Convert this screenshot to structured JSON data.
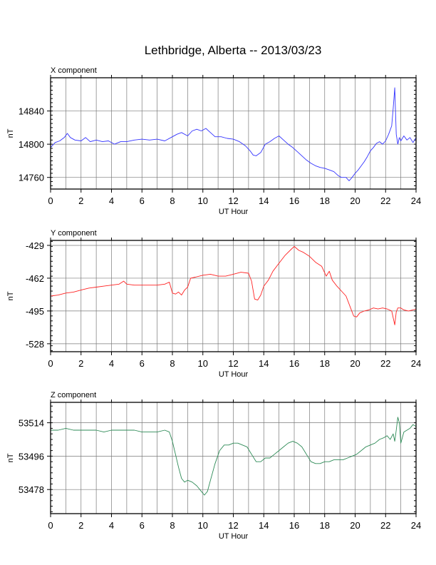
{
  "chart_data": [
    {
      "type": "line",
      "title": "Lethbridge, Alberta -- 2013/03/23",
      "panel_label": "X component",
      "xlabel": "UT Hour",
      "ylabel": "nT",
      "xlim": [
        0,
        24
      ],
      "ylim": [
        14746,
        14880
      ],
      "x_ticks": [
        "0",
        "2",
        "4",
        "6",
        "8",
        "10",
        "12",
        "14",
        "16",
        "18",
        "20",
        "22",
        "24"
      ],
      "y_ticks": [
        {
          "value": 14760,
          "label": "14760"
        },
        {
          "value": 14800,
          "label": "14800"
        },
        {
          "value": 14840,
          "label": "14840"
        }
      ],
      "grid": true,
      "color": "#3333ff",
      "series": [
        {
          "x": [
            0,
            0.3,
            0.6,
            0.9,
            1.1,
            1.3,
            1.6,
            2.0,
            2.3,
            2.6,
            3.0,
            3.4,
            3.8,
            4.2,
            4.6,
            5.0,
            5.5,
            6.0,
            6.5,
            7.0,
            7.5,
            8.0,
            8.3,
            8.6,
            9.0,
            9.3,
            9.6,
            9.9,
            10.2,
            10.5,
            10.8,
            11.2,
            11.6,
            12.0,
            12.4,
            12.8,
            13.1,
            13.3,
            13.5,
            13.8,
            14.1,
            14.4,
            14.7,
            15.0,
            15.3,
            15.6,
            15.9,
            16.2,
            16.5,
            16.8,
            17.1,
            17.4,
            17.7,
            18.0,
            18.3,
            18.6,
            18.9,
            19.1,
            19.4,
            19.6,
            19.8,
            20.0,
            20.2,
            20.4,
            20.6,
            20.8,
            21.0,
            21.2,
            21.4,
            21.6,
            21.8,
            22.0,
            22.2,
            22.4,
            22.5,
            22.6,
            22.7,
            22.8,
            22.9,
            23.0,
            23.2,
            23.4,
            23.6,
            23.8,
            24.0
          ],
          "y": [
            14796,
            14802,
            14804,
            14808,
            14813,
            14808,
            14805,
            14804,
            14808,
            14803,
            14805,
            14803,
            14804,
            14800,
            14803,
            14803,
            14805,
            14806,
            14805,
            14806,
            14804,
            14809,
            14812,
            14814,
            14810,
            14816,
            14818,
            14816,
            14819,
            14814,
            14809,
            14809,
            14807,
            14806,
            14803,
            14798,
            14792,
            14787,
            14786,
            14790,
            14800,
            14803,
            14807,
            14810,
            14805,
            14800,
            14796,
            14791,
            14786,
            14781,
            14777,
            14774,
            14772,
            14771,
            14769,
            14767,
            14762,
            14760,
            14760,
            14756,
            14760,
            14765,
            14769,
            14774,
            14779,
            14785,
            14792,
            14796,
            14801,
            14803,
            14800,
            14804,
            14812,
            14822,
            14843,
            14868,
            14812,
            14800,
            14808,
            14804,
            14810,
            14805,
            14808,
            14802,
            14808
          ]
        }
      ]
    },
    {
      "type": "line",
      "panel_label": "Y component",
      "xlabel": "UT Hour",
      "ylabel": "nT",
      "xlim": [
        0,
        24
      ],
      "ylim": [
        -536,
        -424
      ],
      "x_ticks": [
        "0",
        "2",
        "4",
        "6",
        "8",
        "10",
        "12",
        "14",
        "16",
        "18",
        "20",
        "22",
        "24"
      ],
      "y_ticks": [
        {
          "value": -429,
          "label": "-429"
        },
        {
          "value": -462,
          "label": "-462"
        },
        {
          "value": -495,
          "label": "-495"
        },
        {
          "value": -528,
          "label": "-528"
        }
      ],
      "grid": true,
      "color": "#ff2222",
      "series": [
        {
          "x": [
            0,
            0.5,
            1.0,
            1.5,
            2.0,
            2.5,
            3.0,
            3.5,
            4.0,
            4.5,
            4.8,
            5.0,
            5.5,
            6.0,
            6.5,
            7.0,
            7.5,
            7.8,
            8.0,
            8.2,
            8.4,
            8.6,
            8.8,
            9.0,
            9.2,
            9.5,
            10.0,
            10.5,
            11.0,
            11.5,
            12.0,
            12.5,
            13.0,
            13.2,
            13.4,
            13.6,
            13.8,
            14.0,
            14.3,
            14.6,
            15.0,
            15.4,
            15.8,
            16.0,
            16.3,
            16.6,
            17.0,
            17.4,
            17.8,
            18.1,
            18.3,
            18.5,
            18.8,
            19.1,
            19.4,
            19.7,
            19.9,
            20.1,
            20.3,
            20.6,
            20.9,
            21.2,
            21.5,
            21.8,
            22.1,
            22.4,
            22.6,
            22.7,
            22.8,
            23.0,
            23.2,
            23.5,
            23.8,
            24.0
          ],
          "y": [
            -480,
            -479,
            -477,
            -476,
            -474,
            -472,
            -471,
            -470,
            -469,
            -468,
            -465,
            -468,
            -469,
            -469,
            -469,
            -469,
            -468,
            -466,
            -477,
            -478,
            -476,
            -479,
            -474,
            -471,
            -462,
            -461,
            -459,
            -458,
            -460,
            -460,
            -458,
            -456,
            -457,
            -465,
            -483,
            -484,
            -479,
            -470,
            -464,
            -455,
            -447,
            -439,
            -433,
            -430,
            -434,
            -436,
            -440,
            -446,
            -450,
            -460,
            -455,
            -464,
            -470,
            -475,
            -480,
            -492,
            -500,
            -501,
            -497,
            -495,
            -494,
            -492,
            -493,
            -492,
            -493,
            -495,
            -509,
            -496,
            -492,
            -492,
            -494,
            -495,
            -494,
            -493
          ]
        }
      ]
    },
    {
      "type": "line",
      "panel_label": "Z component",
      "xlabel": "UT Hour",
      "ylabel": "nT",
      "xlim": [
        0,
        24
      ],
      "ylim": [
        53465,
        53525
      ],
      "x_ticks": [
        "0",
        "2",
        "4",
        "6",
        "8",
        "10",
        "12",
        "14",
        "16",
        "18",
        "20",
        "22",
        "24"
      ],
      "y_ticks": [
        {
          "value": 53478,
          "label": "53478"
        },
        {
          "value": 53496,
          "label": "53496"
        },
        {
          "value": 53514,
          "label": "53514"
        }
      ],
      "grid": true,
      "color": "#2e8b57",
      "series": [
        {
          "x": [
            0,
            0.5,
            1.0,
            1.5,
            2.0,
            2.5,
            3.0,
            3.5,
            4.0,
            4.5,
            5.0,
            5.5,
            6.0,
            6.5,
            7.0,
            7.5,
            7.8,
            8.0,
            8.2,
            8.4,
            8.6,
            8.8,
            9.0,
            9.3,
            9.6,
            9.9,
            10.1,
            10.3,
            10.5,
            10.8,
            11.1,
            11.4,
            11.7,
            12.0,
            12.3,
            12.6,
            12.9,
            13.2,
            13.5,
            13.8,
            14.1,
            14.4,
            14.7,
            15.0,
            15.3,
            15.6,
            15.9,
            16.2,
            16.5,
            16.8,
            17.1,
            17.4,
            17.7,
            18.0,
            18.3,
            18.6,
            18.9,
            19.2,
            19.5,
            19.8,
            20.1,
            20.4,
            20.7,
            21.0,
            21.3,
            21.6,
            21.9,
            22.1,
            22.3,
            22.5,
            22.6,
            22.7,
            22.8,
            22.9,
            23.0,
            23.2,
            23.4,
            23.6,
            23.8,
            24.0
          ],
          "y": [
            53510,
            53510,
            53511,
            53510,
            53510,
            53510,
            53510,
            53509,
            53510,
            53510,
            53510,
            53510,
            53509,
            53509,
            53509,
            53510,
            53509,
            53504,
            53497,
            53490,
            53484,
            53482,
            53483,
            53482,
            53480,
            53477,
            53475,
            53477,
            53483,
            53492,
            53499,
            53502,
            53502,
            53503,
            53503,
            53502,
            53501,
            53497,
            53493,
            53493,
            53495,
            53495,
            53497,
            53499,
            53501,
            53503,
            53504,
            53503,
            53501,
            53497,
            53493,
            53492,
            53492,
            53493,
            53493,
            53494,
            53494,
            53494,
            53495,
            53496,
            53497,
            53499,
            53501,
            53502,
            53503,
            53505,
            53506,
            53507,
            53505,
            53508,
            53504,
            53510,
            53517,
            53514,
            53503,
            53509,
            53510,
            53511,
            53513,
            53512
          ]
        }
      ]
    }
  ]
}
